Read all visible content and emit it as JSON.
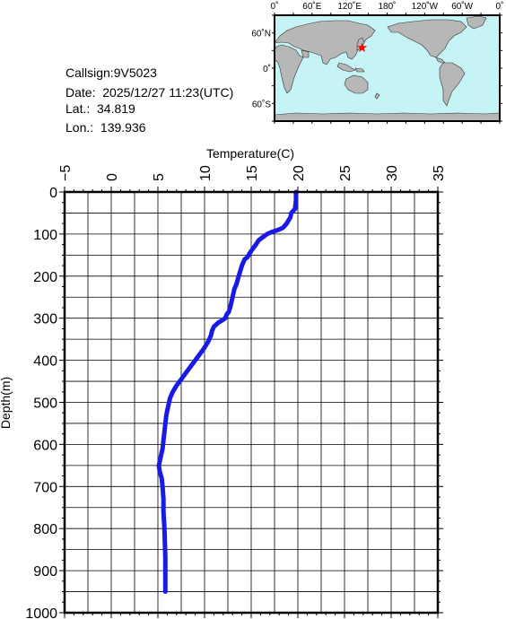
{
  "info": {
    "callsign": "Callsign:9V5023",
    "date": "Date:  2025/12/27 11:23(UTC)",
    "lat": "Lat.:  34.819",
    "lon": "Lon.:  139.936"
  },
  "map": {
    "top_labels": [
      "0˚",
      "60˚E",
      "120˚E",
      "180˚",
      "120˚W",
      "60˚W",
      "0˚"
    ],
    "side_labels": [
      "60˚N",
      "0˚",
      "60˚S"
    ],
    "marker": {
      "lon": 139.936,
      "lat": 34.819
    },
    "colors": {
      "ocean": "#c6f3f6",
      "land": "#b7b7b7",
      "marker": "#ff0000"
    }
  },
  "chart_data": {
    "type": "line",
    "xlabel": "Temperature(C)",
    "ylabel": "Depth(m)",
    "xlim": [
      -5,
      35
    ],
    "ylim": [
      1000,
      0
    ],
    "x_ticks": [
      "−5",
      "0",
      "5",
      "10",
      "15",
      "20",
      "25",
      "30",
      "35"
    ],
    "y_ticks": [
      "0",
      "100",
      "200",
      "300",
      "400",
      "500",
      "600",
      "700",
      "800",
      "900",
      "1000"
    ],
    "grid": true,
    "line_color": "#1a1ae6",
    "series": [
      {
        "x": [
          19.8,
          19.8,
          19.7,
          19.5,
          19.3,
          19.2,
          18.8,
          18.4,
          17.9,
          17.2,
          16.7,
          16.2,
          15.8,
          15.5,
          15.0,
          14.6,
          14.3,
          14.0,
          13.8,
          13.6,
          13.4,
          13.2,
          13.0,
          12.8,
          12.6,
          12.4,
          12.2,
          11.9,
          11.5,
          11.0,
          10.8,
          10.7,
          10.4,
          10.0,
          9.5,
          9.0,
          8.5,
          8.0,
          7.5,
          7.0,
          6.6,
          6.3,
          6.1,
          5.9,
          5.8,
          5.7,
          5.6,
          5.5,
          5.3,
          5.1,
          5.2,
          5.4,
          5.5,
          5.6,
          5.6,
          5.7,
          5.8,
          5.8
        ],
        "y": [
          0,
          20,
          40,
          45,
          50,
          60,
          75,
          85,
          90,
          95,
          100,
          108,
          115,
          125,
          140,
          155,
          160,
          175,
          190,
          205,
          220,
          230,
          250,
          270,
          285,
          290,
          300,
          305,
          310,
          320,
          330,
          340,
          355,
          370,
          385,
          400,
          415,
          430,
          445,
          460,
          475,
          490,
          510,
          530,
          550,
          570,
          590,
          610,
          630,
          650,
          665,
          680,
          700,
          730,
          760,
          800,
          870,
          950
        ]
      }
    ]
  }
}
